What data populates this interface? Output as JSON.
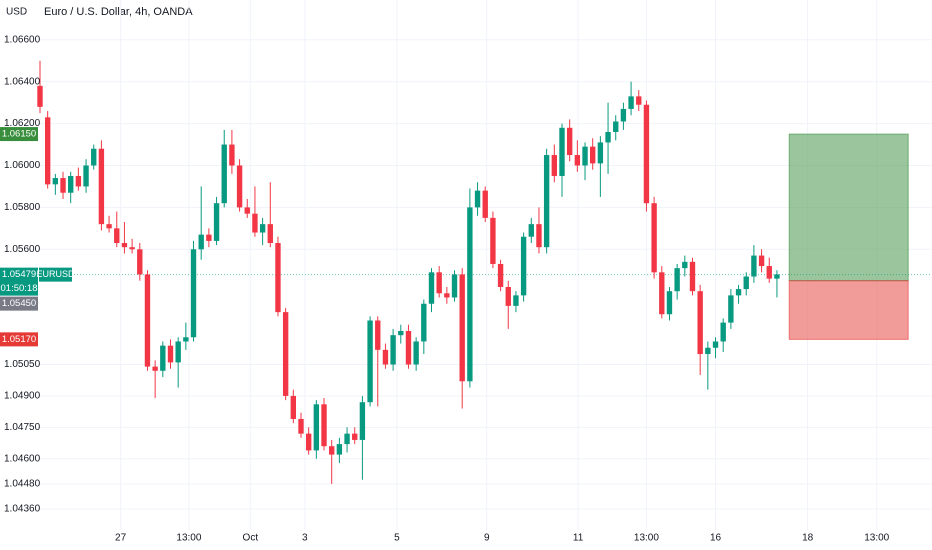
{
  "chart_data": {
    "type": "candlestick",
    "title": "Euro / U.S. Dollar, 4h, OANDA",
    "currency": "USD",
    "up_color": "#089981",
    "down_color": "#f23645",
    "open": [
      1.0638,
      1.0623,
      1.0591,
      1.0594,
      1.0587,
      1.0595,
      1.059,
      1.06,
      1.0608,
      1.0572,
      1.057,
      1.0563,
      1.0561,
      1.056,
      1.0548,
      1.0504,
      1.0502,
      1.0514,
      1.0506,
      1.0516,
      1.0518,
      1.056,
      1.0567,
      1.0564,
      1.0582,
      1.061,
      1.06,
      1.058,
      1.0577,
      1.0568,
      1.0572,
      1.0563,
      1.053,
      1.049,
      1.0479,
      1.0472,
      1.0464,
      1.0486,
      1.0466,
      1.0462,
      1.0467,
      1.0472,
      1.0469,
      1.0487,
      1.0526,
      1.0512,
      1.0505,
      1.0519,
      1.0521,
      1.0505,
      1.0516,
      1.0534,
      1.0549,
      1.0539,
      1.0537,
      1.0548,
      1.0497,
      1.058,
      1.0588,
      1.0575,
      1.0553,
      1.0542,
      1.0533,
      1.0538,
      1.0566,
      1.0572,
      1.0561,
      1.0605,
      1.0595,
      1.0618,
      1.0605,
      1.06,
      1.0609,
      1.0601,
      1.0611,
      1.0616,
      1.0621,
      1.0627,
      1.0633,
      1.0629,
      1.0582,
      1.0549,
      1.0529,
      1.054,
      1.0551,
      1.0554,
      1.054,
      1.051,
      1.0513,
      1.0516,
      1.0525,
      1.0538,
      1.0541,
      1.0547,
      1.0557,
      1.0552,
      1.0546
    ],
    "high": [
      1.065,
      1.0626,
      1.0596,
      1.0597,
      1.0597,
      1.0599,
      1.0603,
      1.061,
      1.0612,
      1.0576,
      1.0578,
      1.0573,
      1.0565,
      1.0563,
      1.055,
      1.0507,
      1.0516,
      1.0517,
      1.0518,
      1.0525,
      1.0564,
      1.059,
      1.057,
      1.0585,
      1.0617,
      1.0617,
      1.0603,
      1.0584,
      1.059,
      1.0575,
      1.0592,
      1.0566,
      1.0532,
      1.0493,
      1.0482,
      1.0475,
      1.0488,
      1.0489,
      1.0469,
      1.047,
      1.0475,
      1.0475,
      1.049,
      1.0528,
      1.0528,
      1.0515,
      1.0522,
      1.0524,
      1.0524,
      1.0518,
      1.0536,
      1.0551,
      1.0552,
      1.0542,
      1.055,
      1.0551,
      1.0589,
      1.0592,
      1.059,
      1.0578,
      1.0555,
      1.0545,
      1.054,
      1.0568,
      1.0575,
      1.058,
      1.0608,
      1.061,
      1.062,
      1.0622,
      1.0612,
      1.0611,
      1.0613,
      1.0614,
      1.063,
      1.0624,
      1.063,
      1.064,
      1.0636,
      1.0631,
      1.0585,
      1.0552,
      1.0542,
      1.0553,
      1.0557,
      1.0556,
      1.0543,
      1.0516,
      1.0518,
      1.0527,
      1.0541,
      1.0543,
      1.0549,
      1.0562,
      1.056,
      1.0556,
      1.055
    ],
    "low": [
      1.0625,
      1.0589,
      1.0586,
      1.0584,
      1.0582,
      1.0588,
      1.0587,
      1.0598,
      1.0569,
      1.0568,
      1.0561,
      1.0558,
      1.0558,
      1.0545,
      1.0502,
      1.0489,
      1.0499,
      1.0503,
      1.0494,
      1.0512,
      1.0516,
      1.0555,
      1.0561,
      1.0562,
      1.058,
      1.0596,
      1.0578,
      1.0575,
      1.0566,
      1.0562,
      1.0561,
      1.0528,
      1.0488,
      1.0477,
      1.047,
      1.0462,
      1.046,
      1.0464,
      1.0448,
      1.0458,
      1.0463,
      1.0467,
      1.045,
      1.0485,
      1.0485,
      1.0503,
      1.0502,
      1.0515,
      1.0503,
      1.0502,
      1.051,
      1.053,
      1.0537,
      1.0534,
      1.0535,
      1.0484,
      1.0494,
      1.0576,
      1.0573,
      1.0551,
      1.054,
      1.0522,
      1.053,
      1.0535,
      1.0563,
      1.0558,
      1.0558,
      1.0592,
      1.0585,
      1.0602,
      1.0597,
      1.0593,
      1.0598,
      1.0585,
      1.0596,
      1.0612,
      1.0617,
      1.0624,
      1.0626,
      1.0578,
      1.0546,
      1.0527,
      1.0526,
      1.0536,
      1.0547,
      1.0538,
      1.05,
      1.0493,
      1.0508,
      1.0511,
      1.0522,
      1.0534,
      1.0538,
      1.0544,
      1.0549,
      1.0544,
      1.0537
    ],
    "close": [
      1.0628,
      1.0591,
      1.0594,
      1.0587,
      1.0595,
      1.059,
      1.06,
      1.0608,
      1.0572,
      1.057,
      1.0563,
      1.0561,
      1.056,
      1.0548,
      1.0504,
      1.0502,
      1.0514,
      1.0506,
      1.0516,
      1.0518,
      1.056,
      1.0567,
      1.0564,
      1.0582,
      1.061,
      1.06,
      1.058,
      1.0577,
      1.0568,
      1.0572,
      1.0563,
      1.053,
      1.049,
      1.0479,
      1.0472,
      1.0464,
      1.0486,
      1.0466,
      1.0462,
      1.0467,
      1.0472,
      1.0469,
      1.0487,
      1.0526,
      1.0512,
      1.0505,
      1.0519,
      1.0521,
      1.0505,
      1.0516,
      1.0534,
      1.0549,
      1.0539,
      1.0537,
      1.0548,
      1.0497,
      1.058,
      1.0588,
      1.0575,
      1.0553,
      1.0542,
      1.0533,
      1.0538,
      1.0566,
      1.0572,
      1.0561,
      1.0605,
      1.0595,
      1.0618,
      1.0605,
      1.06,
      1.0609,
      1.0601,
      1.0611,
      1.0616,
      1.0621,
      1.0627,
      1.0633,
      1.0629,
      1.0582,
      1.0549,
      1.0529,
      1.054,
      1.0551,
      1.0554,
      1.054,
      1.051,
      1.0513,
      1.0516,
      1.0525,
      1.0538,
      1.0541,
      1.0547,
      1.0557,
      1.0552,
      1.0546,
      1.0548
    ],
    "xlim": [
      -0.26,
      116.2
    ],
    "xticks": [
      {
        "value": 10.5,
        "label": "27"
      },
      {
        "value": 19.4,
        "label": "13:00"
      },
      {
        "value": 27.4,
        "label": "Oct"
      },
      {
        "value": 34.5,
        "label": "3"
      },
      {
        "value": 46.5,
        "label": "5"
      },
      {
        "value": 58.2,
        "label": "9"
      },
      {
        "value": 70.1,
        "label": "11"
      },
      {
        "value": 79,
        "label": "13:00"
      },
      {
        "value": 88,
        "label": "16"
      },
      {
        "value": 100,
        "label": "18"
      },
      {
        "value": 109,
        "label": "13:00"
      }
    ],
    "ylim": [
      1.0426,
      1.0679
    ],
    "yticks": [
      {
        "value": 1.066,
        "label": "1.06600"
      },
      {
        "value": 1.064,
        "label": "1.06400"
      },
      {
        "value": 1.062,
        "label": "1.06200"
      },
      {
        "value": 1.06,
        "label": "1.06000"
      },
      {
        "value": 1.058,
        "label": "1.05800"
      },
      {
        "value": 1.056,
        "label": "1.05600"
      },
      {
        "value": 1.0505,
        "label": "1.05050"
      },
      {
        "value": 1.049,
        "label": "1.04900"
      },
      {
        "value": 1.0475,
        "label": "1.04750"
      },
      {
        "value": 1.046,
        "label": "1.04600"
      },
      {
        "value": 1.0448,
        "label": "1.04480"
      },
      {
        "value": 1.0436,
        "label": "1.04360"
      }
    ],
    "grid": true,
    "last_price": {
      "value": 1.05479,
      "label": "1.05479",
      "symbol": "EURUSD",
      "countdown": "01:50:18",
      "color": "#089981"
    },
    "position": {
      "start": 97.6,
      "end": 113.1,
      "target": {
        "value": 1.0615,
        "label": "1.06150",
        "color": "#388e3c"
      },
      "entry": {
        "value": 1.0545,
        "label": "1.05450",
        "color": "#787b86"
      },
      "stop": {
        "value": 1.0517,
        "label": "1.05170",
        "color": "#e53935"
      }
    }
  }
}
